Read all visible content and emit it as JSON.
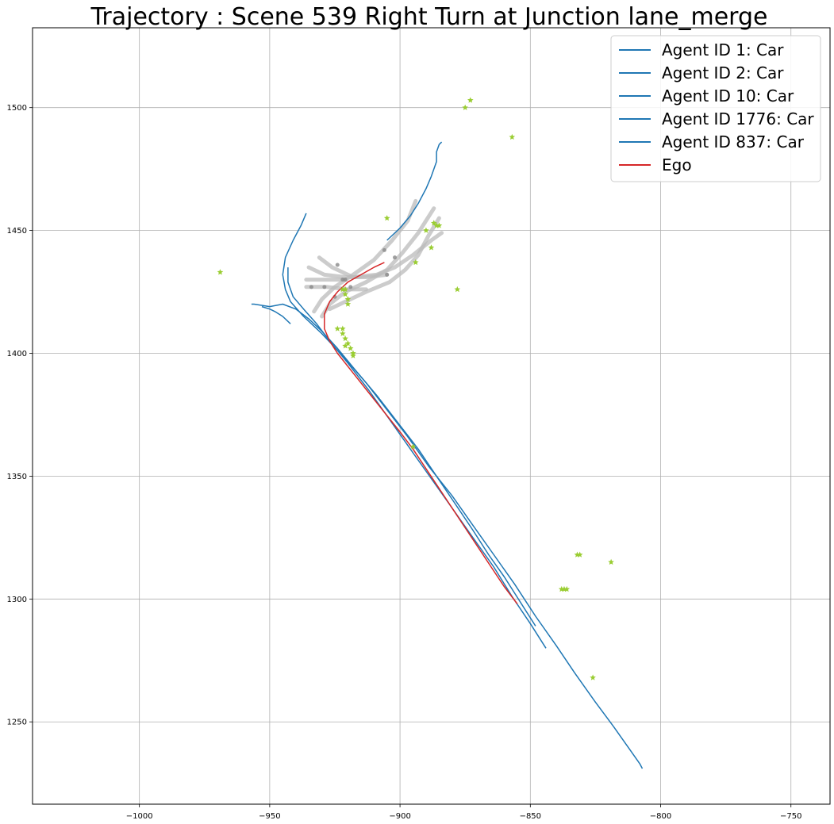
{
  "chart_data": {
    "type": "line",
    "title": "Trajectory : Scene 539 Right Turn at Junction lane_merge",
    "xlabel": "",
    "ylabel": "",
    "xlim": [
      -1041,
      -735
    ],
    "ylim": [
      1216.5,
      1532.5
    ],
    "xticks": [
      -1000,
      -950,
      -900,
      -850,
      -800,
      -750
    ],
    "yticks": [
      1250,
      1300,
      1350,
      1400,
      1450,
      1500
    ],
    "grid": true,
    "legend_position": "top-right",
    "colors": {
      "agent": "#1f77b4",
      "ego": "#d62728",
      "marker": "#9acd32",
      "lane": "#bbbbbb",
      "lane_dot": "#888888"
    },
    "series": [
      {
        "name": "Agent ID 1: Car",
        "color": "#1f77b4",
        "points": [
          [
            -807,
            1231
          ],
          [
            -808,
            1233
          ],
          [
            -812,
            1239
          ],
          [
            -818,
            1248
          ],
          [
            -825,
            1258
          ],
          [
            -833,
            1270
          ],
          [
            -840,
            1281
          ],
          [
            -848,
            1293
          ],
          [
            -856,
            1306
          ],
          [
            -864,
            1318
          ],
          [
            -872,
            1330
          ],
          [
            -880,
            1342
          ],
          [
            -889,
            1354
          ],
          [
            -897,
            1366
          ],
          [
            -905,
            1377
          ],
          [
            -913,
            1388
          ],
          [
            -922,
            1399
          ],
          [
            -930,
            1408
          ],
          [
            -937,
            1415
          ],
          [
            -942,
            1421
          ],
          [
            -944,
            1426
          ],
          [
            -945,
            1432
          ],
          [
            -944,
            1439
          ],
          [
            -941,
            1446
          ],
          [
            -938,
            1452
          ],
          [
            -936,
            1457
          ]
        ]
      },
      {
        "name": "Agent ID 2: Car",
        "color": "#1f77b4",
        "points": [
          [
            -844,
            1280
          ],
          [
            -850,
            1290
          ],
          [
            -857,
            1301
          ],
          [
            -864,
            1313
          ],
          [
            -872,
            1325
          ],
          [
            -880,
            1337
          ],
          [
            -888,
            1349
          ],
          [
            -896,
            1361
          ],
          [
            -904,
            1373
          ],
          [
            -912,
            1385
          ],
          [
            -920,
            1396
          ],
          [
            -927,
            1405
          ],
          [
            -932,
            1412
          ],
          [
            -937,
            1418
          ],
          [
            -941,
            1423
          ],
          [
            -943,
            1429
          ],
          [
            -943,
            1435
          ]
        ]
      },
      {
        "name": "Agent ID 10: Car",
        "color": "#1f77b4",
        "points": [
          [
            -905,
            1446
          ],
          [
            -900,
            1451
          ],
          [
            -896,
            1456
          ],
          [
            -893,
            1461
          ],
          [
            -890,
            1467
          ],
          [
            -888,
            1472
          ],
          [
            -886,
            1478
          ],
          [
            -886,
            1482
          ],
          [
            -885,
            1485
          ],
          [
            -884,
            1486
          ]
        ]
      },
      {
        "name": "Agent ID 1776: Car",
        "color": "#1f77b4",
        "points": [
          [
            -848,
            1289
          ],
          [
            -854,
            1299
          ],
          [
            -860,
            1309
          ],
          [
            -866,
            1318
          ],
          [
            -872,
            1328
          ],
          [
            -879,
            1339
          ],
          [
            -886,
            1350
          ],
          [
            -893,
            1361
          ],
          [
            -901,
            1372
          ],
          [
            -909,
            1383
          ],
          [
            -917,
            1393
          ],
          [
            -924,
            1402
          ],
          [
            -930,
            1409
          ],
          [
            -935,
            1414
          ],
          [
            -940,
            1418
          ],
          [
            -945,
            1420
          ],
          [
            -950,
            1419
          ],
          [
            -956,
            1420
          ],
          [
            -957,
            1420
          ]
        ]
      },
      {
        "name": "Agent ID 837: Car",
        "color": "#1f77b4",
        "points": [
          [
            -942,
            1412
          ],
          [
            -945,
            1415
          ],
          [
            -948,
            1417
          ],
          [
            -950,
            1418
          ],
          [
            -953,
            1419
          ]
        ]
      },
      {
        "name": "Ego",
        "color": "#d62728",
        "points": [
          [
            -855,
            1298
          ],
          [
            -860,
            1305
          ],
          [
            -865,
            1313
          ],
          [
            -870,
            1321
          ],
          [
            -875,
            1329
          ],
          [
            -880,
            1337
          ],
          [
            -885,
            1345
          ],
          [
            -890,
            1353
          ],
          [
            -895,
            1361
          ],
          [
            -900,
            1368
          ],
          [
            -906,
            1376
          ],
          [
            -912,
            1384
          ],
          [
            -918,
            1392
          ],
          [
            -924,
            1400
          ],
          [
            -927,
            1405
          ],
          [
            -929,
            1410
          ],
          [
            -929,
            1416
          ],
          [
            -927,
            1421
          ],
          [
            -924,
            1425
          ],
          [
            -920,
            1429
          ],
          [
            -915,
            1432
          ],
          [
            -910,
            1435
          ],
          [
            -906,
            1437
          ]
        ]
      }
    ],
    "lane_segments": [
      [
        [
          -933,
          1417
        ],
        [
          -930,
          1422
        ],
        [
          -925,
          1427
        ],
        [
          -918,
          1432
        ],
        [
          -910,
          1438
        ],
        [
          -903,
          1446
        ],
        [
          -897,
          1454
        ],
        [
          -894,
          1462
        ]
      ],
      [
        [
          -930,
          1415
        ],
        [
          -927,
          1420
        ],
        [
          -921,
          1425
        ],
        [
          -913,
          1429
        ],
        [
          -905,
          1434
        ],
        [
          -899,
          1441
        ],
        [
          -893,
          1449
        ],
        [
          -887,
          1459
        ]
      ],
      [
        [
          -927,
          1418
        ],
        [
          -921,
          1421
        ],
        [
          -913,
          1425
        ],
        [
          -904,
          1429
        ],
        [
          -898,
          1434
        ],
        [
          -893,
          1440
        ],
        [
          -889,
          1448
        ],
        [
          -885,
          1455
        ]
      ],
      [
        [
          -931,
          1439
        ],
        [
          -926,
          1435
        ],
        [
          -918,
          1431
        ],
        [
          -909,
          1432
        ],
        [
          -902,
          1435
        ],
        [
          -895,
          1440
        ],
        [
          -888,
          1446
        ],
        [
          -884,
          1449
        ]
      ],
      [
        [
          -935,
          1435
        ],
        [
          -929,
          1432
        ],
        [
          -921,
          1431
        ],
        [
          -913,
          1431
        ],
        [
          -905,
          1432
        ]
      ],
      [
        [
          -936,
          1427
        ],
        [
          -928,
          1427
        ],
        [
          -920,
          1426
        ],
        [
          -913,
          1426
        ]
      ],
      [
        [
          -936,
          1430
        ],
        [
          -928,
          1430
        ],
        [
          -921,
          1430
        ]
      ]
    ],
    "lane_dots": [
      [
        -924,
        1436
      ],
      [
        -922,
        1430
      ],
      [
        -906,
        1442
      ],
      [
        -902,
        1439
      ],
      [
        -919,
        1427
      ],
      [
        -929,
        1427
      ],
      [
        -934,
        1427
      ],
      [
        -921,
        1430
      ],
      [
        -905,
        1432
      ],
      [
        -925,
        1423
      ]
    ],
    "markers": [
      [
        -969,
        1433
      ],
      [
        -905,
        1455
      ],
      [
        -890,
        1450
      ],
      [
        -886,
        1452
      ],
      [
        -887,
        1453
      ],
      [
        -885,
        1452
      ],
      [
        -888,
        1443
      ],
      [
        -894,
        1437
      ],
      [
        -878,
        1426
      ],
      [
        -873,
        1503
      ],
      [
        -875,
        1500
      ],
      [
        -857,
        1488
      ],
      [
        -921,
        1426
      ],
      [
        -921,
        1424
      ],
      [
        -920,
        1422
      ],
      [
        -920,
        1420
      ],
      [
        -922,
        1426
      ],
      [
        -922,
        1410
      ],
      [
        -922,
        1408
      ],
      [
        -921,
        1406
      ],
      [
        -920,
        1404
      ],
      [
        -919,
        1402
      ],
      [
        -918,
        1400
      ],
      [
        -918,
        1399
      ],
      [
        -921,
        1403
      ],
      [
        -924,
        1410
      ],
      [
        -895,
        1362
      ],
      [
        -831,
        1318
      ],
      [
        -832,
        1318
      ],
      [
        -837,
        1304
      ],
      [
        -838,
        1304
      ],
      [
        -836,
        1304
      ],
      [
        -819,
        1315
      ],
      [
        -826,
        1268
      ]
    ]
  }
}
